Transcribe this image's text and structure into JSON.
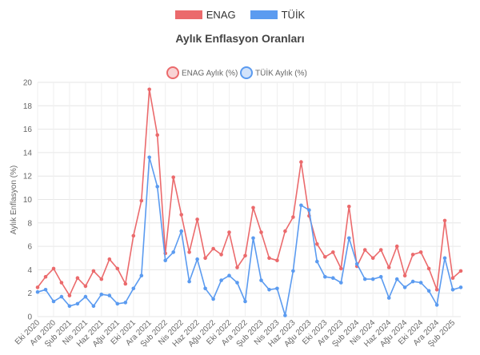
{
  "legend_top": [
    {
      "label": "ENAG",
      "color": "#eb6a6c"
    },
    {
      "label": "TÜİK",
      "color": "#5b9bf0"
    }
  ],
  "chart_data": {
    "type": "line",
    "title": "Aylık Enflasyon Oranları",
    "xlabel": "",
    "ylabel": "Aylık Enflasyon (%)",
    "ylim": [
      0,
      20
    ],
    "yticks": [
      0,
      2,
      4,
      6,
      8,
      10,
      12,
      14,
      16,
      18,
      20
    ],
    "grid": true,
    "legend_inner": [
      "ENAG Aylık (%)",
      "TÜİK Aylık (%)"
    ],
    "x_tick_labels": [
      "Eki 2020",
      "Ara 2020",
      "Şub 2021",
      "Nis 2021",
      "Haz 2021",
      "Ağu 2021",
      "Eki 2021",
      "Ara 2021",
      "Şub 2022",
      "Nis 2022",
      "Haz 2022",
      "Ağu 2022",
      "Eki 2022",
      "Ara 2022",
      "Şub 2023",
      "Nis 2023",
      "Haz 2023",
      "Ağu 2023",
      "Eki 2023",
      "Ara 2023",
      "Şub 2024",
      "Nis 2024",
      "Haz 2024",
      "Ağu 2024",
      "Eki 2024",
      "Ara 2024",
      "Şub 2025"
    ],
    "series": [
      {
        "name": "ENAG",
        "line_color": "#eb6a6c",
        "fill_color": "#f8d3d4",
        "values": [
          2.5,
          3.4,
          4.1,
          2.9,
          1.8,
          3.3,
          2.6,
          3.9,
          3.2,
          4.9,
          4.1,
          2.8,
          6.9,
          9.9,
          19.4,
          15.5,
          5.4,
          11.9,
          8.7,
          5.5,
          8.3,
          5.0,
          5.8,
          5.3,
          7.2,
          4.2,
          5.2,
          9.3,
          7.2,
          5.0,
          4.8,
          7.3,
          8.5,
          13.2,
          8.6,
          6.2,
          5.1,
          5.5,
          4.1,
          9.4,
          4.3,
          5.7,
          5.0,
          5.7,
          4.2,
          6.0,
          3.5,
          5.3,
          5.5,
          4.1,
          2.3,
          8.2,
          3.3,
          3.9
        ]
      },
      {
        "name": "TÜİK",
        "line_color": "#5b9bf0",
        "fill_color": "#d2e3fb",
        "values": [
          2.1,
          2.3,
          1.3,
          1.7,
          0.9,
          1.1,
          1.7,
          0.9,
          1.9,
          1.8,
          1.1,
          1.2,
          2.4,
          3.5,
          13.6,
          11.1,
          4.8,
          5.5,
          7.3,
          3.0,
          4.9,
          2.4,
          1.5,
          3.1,
          3.5,
          2.9,
          1.3,
          6.7,
          3.1,
          2.3,
          2.4,
          0.1,
          3.9,
          9.5,
          9.1,
          4.7,
          3.4,
          3.3,
          2.9,
          6.7,
          4.5,
          3.2,
          3.2,
          3.4,
          1.6,
          3.2,
          2.5,
          3.0,
          2.9,
          2.2,
          1.0,
          5.0,
          2.3,
          2.5
        ]
      }
    ]
  }
}
